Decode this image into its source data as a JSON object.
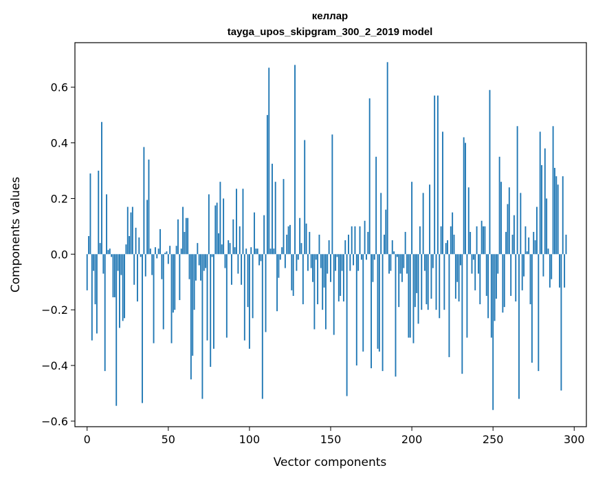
{
  "chart_data": {
    "type": "bar",
    "title": "келлар",
    "subtitle": "tayga_upos_skipgram_300_2_2019 model",
    "xlabel": "Vector components",
    "ylabel": "Components values",
    "xlim": [
      -7.5,
      307.5
    ],
    "ylim": [
      -0.62,
      0.76
    ],
    "xticks": [
      0,
      50,
      100,
      150,
      200,
      250,
      300
    ],
    "xtick_labels": [
      "0",
      "50",
      "100",
      "150",
      "200",
      "250",
      "300"
    ],
    "yticks": [
      -0.6,
      -0.4,
      -0.2,
      0.0,
      0.2,
      0.4,
      0.6
    ],
    "ytick_labels": [
      "−0.6",
      "−0.4",
      "−0.2",
      "0.0",
      "0.2",
      "0.4",
      "0.6"
    ],
    "grid": false,
    "bar_color": "#1f77b4",
    "values": [
      -0.13,
      0.065,
      0.29,
      -0.31,
      -0.06,
      -0.18,
      -0.285,
      0.3,
      0.04,
      0.475,
      -0.07,
      -0.42,
      0.215,
      0.015,
      0.02,
      -0.01,
      -0.155,
      -0.155,
      -0.545,
      -0.06,
      -0.265,
      -0.075,
      -0.24,
      -0.23,
      0.035,
      0.17,
      0.065,
      0.15,
      0.17,
      -0.11,
      0.095,
      -0.17,
      0.06,
      -0.01,
      -0.535,
      0.385,
      -0.08,
      0.195,
      0.34,
      0.02,
      -0.075,
      -0.32,
      0.025,
      -0.015,
      0.02,
      0.09,
      -0.09,
      -0.27,
      0.005,
      0.01,
      -0.035,
      0.03,
      -0.32,
      -0.21,
      -0.2,
      0.03,
      0.125,
      -0.165,
      0.02,
      0.17,
      0.08,
      0.13,
      0.13,
      -0.09,
      -0.45,
      -0.365,
      -0.2,
      -0.095,
      0.04,
      -0.04,
      -0.095,
      -0.52,
      -0.06,
      -0.05,
      -0.31,
      0.215,
      -0.405,
      -0.01,
      -0.34,
      0.175,
      0.185,
      0.075,
      0.26,
      0.035,
      0.2,
      -0.05,
      -0.3,
      0.05,
      0.04,
      -0.11,
      0.125,
      0.025,
      0.235,
      -0.07,
      0.1,
      -0.11,
      0.235,
      -0.31,
      0.02,
      -0.19,
      -0.34,
      0.025,
      -0.23,
      0.15,
      0.02,
      0.02,
      -0.04,
      -0.025,
      -0.52,
      0.14,
      -0.28,
      0.5,
      0.67,
      0.02,
      0.325,
      0.02,
      0.26,
      -0.205,
      -0.085,
      -0.02,
      0.025,
      0.27,
      -0.05,
      0.07,
      0.1,
      0.105,
      -0.13,
      -0.15,
      0.68,
      -0.06,
      -0.02,
      0.13,
      0.04,
      -0.18,
      0.41,
      0.11,
      -0.06,
      0.08,
      -0.05,
      -0.1,
      -0.27,
      -0.02,
      -0.18,
      0.07,
      -0.05,
      -0.2,
      -0.12,
      -0.27,
      -0.07,
      0.05,
      -0.1,
      0.43,
      -0.29,
      -0.06,
      -0.01,
      -0.17,
      -0.15,
      -0.06,
      -0.17,
      0.05,
      -0.51,
      0.07,
      -0.06,
      0.1,
      -0.04,
      0.1,
      -0.4,
      -0.06,
      0.1,
      -0.02,
      -0.35,
      0.12,
      -0.02,
      0.08,
      0.56,
      -0.41,
      -0.1,
      -0.02,
      0.35,
      -0.34,
      -0.35,
      0.22,
      -0.42,
      0.07,
      0.16,
      0.69,
      -0.07,
      -0.06,
      0.05,
      0.01,
      -0.44,
      -0.01,
      -0.19,
      -0.07,
      -0.1,
      -0.05,
      0.08,
      -0.07,
      -0.3,
      -0.3,
      0.26,
      -0.32,
      -0.19,
      -0.14,
      -0.25,
      0.1,
      -0.2,
      0.22,
      -0.06,
      -0.18,
      -0.2,
      0.25,
      -0.16,
      -0.05,
      0.57,
      -0.2,
      0.57,
      -0.23,
      0.1,
      0.44,
      -0.2,
      0.04,
      0.05,
      -0.37,
      0.1,
      0.15,
      0.07,
      -0.16,
      -0.1,
      -0.17,
      -0.04,
      -0.43,
      0.42,
      0.4,
      -0.3,
      0.24,
      0.08,
      -0.07,
      -0.02,
      -0.13,
      0.1,
      -0.07,
      -0.18,
      0.12,
      0.1,
      0.1,
      -0.15,
      -0.23,
      0.59,
      -0.3,
      -0.56,
      -0.24,
      -0.16,
      -0.07,
      0.35,
      0.26,
      -0.21,
      -0.19,
      0.08,
      0.18,
      0.24,
      -0.15,
      0.07,
      0.14,
      -0.17,
      0.46,
      -0.52,
      0.22,
      -0.13,
      -0.08,
      0.1,
      0.01,
      0.06,
      -0.18,
      -0.39,
      0.08,
      0.05,
      0.17,
      -0.42,
      0.44,
      0.32,
      -0.08,
      0.38,
      0.2,
      0.02,
      -0.12,
      -0.09,
      0.46,
      0.31,
      0.28,
      0.25,
      -0.12,
      -0.49,
      0.28,
      -0.12,
      0.07
    ]
  }
}
